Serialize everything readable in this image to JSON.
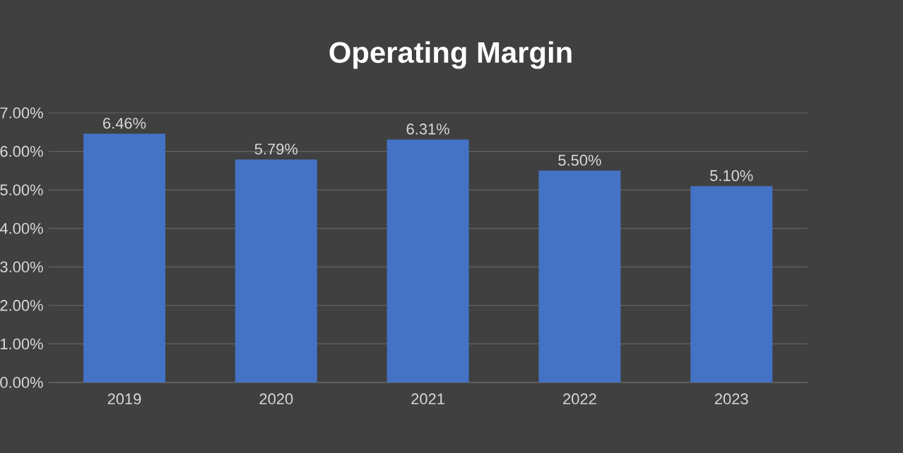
{
  "chart_data": {
    "type": "bar",
    "title": "Operating Margin",
    "categories": [
      "2019",
      "2020",
      "2021",
      "2022",
      "2023"
    ],
    "values": [
      6.46,
      5.79,
      6.31,
      5.5,
      5.1
    ],
    "value_labels": [
      "6.46%",
      "5.79%",
      "6.31%",
      "5.50%",
      "5.10%"
    ],
    "color": "#4472c4",
    "ylim": [
      0,
      7
    ],
    "yticks": [
      {
        "value": 0,
        "label": "0.00%"
      },
      {
        "value": 1,
        "label": "1.00%"
      },
      {
        "value": 2,
        "label": "2.00%"
      },
      {
        "value": 3,
        "label": "3.00%"
      },
      {
        "value": 4,
        "label": "4.00%"
      },
      {
        "value": 5,
        "label": "5.00%"
      },
      {
        "value": 6,
        "label": "6.00%"
      },
      {
        "value": 7,
        "label": "7.00%"
      }
    ],
    "grid": "y"
  }
}
